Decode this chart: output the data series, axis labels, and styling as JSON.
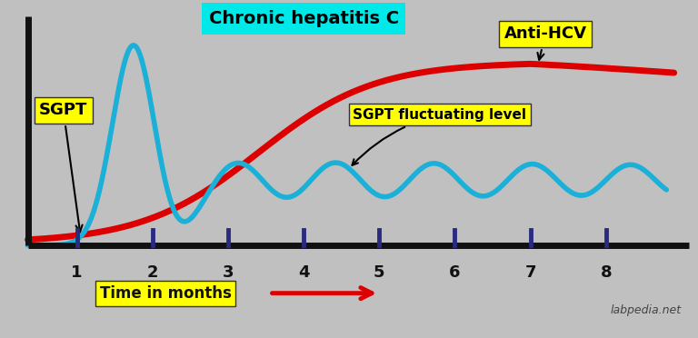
{
  "background_color": "#c0c0c0",
  "title": "Chronic hepatitis C",
  "title_bg": "#00e8e8",
  "xlabel": "Time in months",
  "x_arrow_color": "#dd0000",
  "sgpt_color": "#1ab0d8",
  "antihcv_color": "#dd0000",
  "label_bg": "#ffff00",
  "tick_color": "#2a2a80",
  "axis_color": "#111111",
  "x_ticks": [
    1,
    2,
    3,
    4,
    5,
    6,
    7,
    8
  ],
  "watermark": "labpedia.net",
  "sgpt_label": "SGPT",
  "antihcv_label": "Anti-HCV",
  "fluctuating_label": "SGPT fluctuating level"
}
